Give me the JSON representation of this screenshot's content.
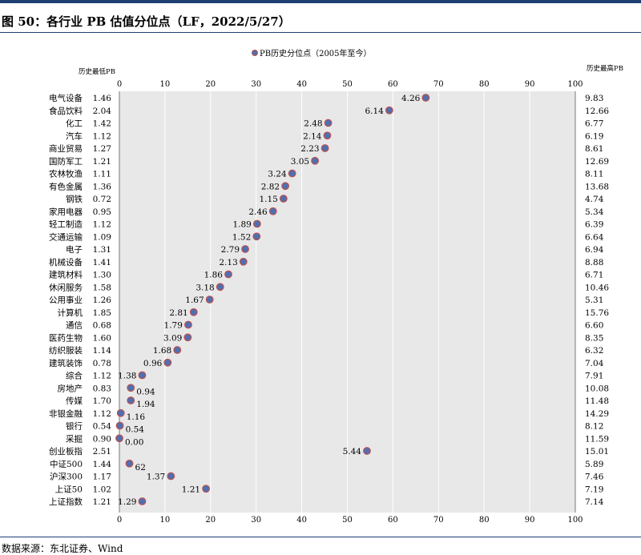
{
  "page": {
    "title": "图 50：各行业 PB 估值分位点（LF，2022/5/27）",
    "source": "数据来源：东北证券、Wind"
  },
  "chart_data": {
    "type": "scatter",
    "title": "",
    "legend": {
      "label": "PB历史分位点（2005年至今）",
      "position": "top-center"
    },
    "left_header": "历史最低PB",
    "right_header": "历史最高PB",
    "xlim": [
      0,
      100
    ],
    "xticks": [
      0,
      10,
      20,
      30,
      40,
      50,
      60,
      70,
      80,
      90,
      100
    ],
    "grid": true,
    "colors": {
      "marker_fill": "#4f6fb0",
      "marker_edge": "#c0504d",
      "plot_bg": "#e8e8e8",
      "grid": "#ffffff"
    },
    "rows": [
      {
        "name": "电气设备",
        "min_pb": "1.46",
        "max_pb": "9.83",
        "percentile": 67.2,
        "current_pb": "4.26"
      },
      {
        "name": "食品饮料",
        "min_pb": "2.04",
        "max_pb": "12.66",
        "percentile": 59.2,
        "current_pb": "6.14"
      },
      {
        "name": "化工",
        "min_pb": "1.42",
        "max_pb": "6.77",
        "percentile": 45.8,
        "current_pb": "2.48"
      },
      {
        "name": "汽车",
        "min_pb": "1.12",
        "max_pb": "6.19",
        "percentile": 45.6,
        "current_pb": "2.14"
      },
      {
        "name": "商业贸易",
        "min_pb": "1.27",
        "max_pb": "8.61",
        "percentile": 45.1,
        "current_pb": "2.23"
      },
      {
        "name": "国防军工",
        "min_pb": "1.21",
        "max_pb": "12.69",
        "percentile": 42.9,
        "current_pb": "3.05"
      },
      {
        "name": "农林牧渔",
        "min_pb": "1.11",
        "max_pb": "8.11",
        "percentile": 37.9,
        "current_pb": "3.24"
      },
      {
        "name": "有色金属",
        "min_pb": "1.36",
        "max_pb": "13.68",
        "percentile": 36.4,
        "current_pb": "2.82"
      },
      {
        "name": "钢铁",
        "min_pb": "0.72",
        "max_pb": "4.74",
        "percentile": 36.0,
        "current_pb": "1.15"
      },
      {
        "name": "家用电器",
        "min_pb": "0.95",
        "max_pb": "5.34",
        "percentile": 33.7,
        "current_pb": "2.46"
      },
      {
        "name": "轻工制造",
        "min_pb": "1.12",
        "max_pb": "6.39",
        "percentile": 30.2,
        "current_pb": "1.89"
      },
      {
        "name": "交通运输",
        "min_pb": "1.09",
        "max_pb": "6.64",
        "percentile": 30.1,
        "current_pb": "1.52"
      },
      {
        "name": "电子",
        "min_pb": "1.31",
        "max_pb": "6.94",
        "percentile": 27.6,
        "current_pb": "2.79"
      },
      {
        "name": "机械设备",
        "min_pb": "1.41",
        "max_pb": "8.88",
        "percentile": 27.2,
        "current_pb": "2.13"
      },
      {
        "name": "建筑材料",
        "min_pb": "1.30",
        "max_pb": "6.71",
        "percentile": 23.9,
        "current_pb": "1.86"
      },
      {
        "name": "休闲服务",
        "min_pb": "1.58",
        "max_pb": "10.46",
        "percentile": 22.1,
        "current_pb": "3.18"
      },
      {
        "name": "公用事业",
        "min_pb": "1.26",
        "max_pb": "5.31",
        "percentile": 19.8,
        "current_pb": "1.67"
      },
      {
        "name": "计算机",
        "min_pb": "1.85",
        "max_pb": "15.76",
        "percentile": 16.3,
        "current_pb": "2.81"
      },
      {
        "name": "通信",
        "min_pb": "0.68",
        "max_pb": "6.60",
        "percentile": 15.1,
        "current_pb": "1.79"
      },
      {
        "name": "医药生物",
        "min_pb": "1.60",
        "max_pb": "8.35",
        "percentile": 15.0,
        "current_pb": "3.09"
      },
      {
        "name": "纺织服装",
        "min_pb": "1.14",
        "max_pb": "6.32",
        "percentile": 12.7,
        "current_pb": "1.68"
      },
      {
        "name": "建筑装饰",
        "min_pb": "0.78",
        "max_pb": "7.04",
        "percentile": 10.6,
        "current_pb": "0.96"
      },
      {
        "name": "综合",
        "min_pb": "1.12",
        "max_pb": "7.91",
        "percentile": 5.0,
        "current_pb": "1.38"
      },
      {
        "name": "房地产",
        "min_pb": "0.83",
        "max_pb": "10.08",
        "percentile": 2.5,
        "current_pb": "0.94"
      },
      {
        "name": "传媒",
        "min_pb": "1.70",
        "max_pb": "11.48",
        "percentile": 2.5,
        "current_pb": "1.94"
      },
      {
        "name": "非银金融",
        "min_pb": "1.12",
        "max_pb": "14.29",
        "percentile": 0.3,
        "current_pb": "1.16"
      },
      {
        "name": "银行",
        "min_pb": "0.54",
        "max_pb": "8.12",
        "percentile": 0.1,
        "current_pb": "0.54"
      },
      {
        "name": "采掘",
        "min_pb": "0.90",
        "max_pb": "11.59",
        "percentile": 0.0,
        "current_pb": "0.00"
      },
      {
        "name": "创业板指",
        "min_pb": "2.51",
        "max_pb": "15.01",
        "percentile": 54.3,
        "current_pb": "5.44"
      },
      {
        "name": "中证500",
        "min_pb": "1.44",
        "max_pb": "5.89",
        "percentile": 2.2,
        "current_pb": "62"
      },
      {
        "name": "沪深300",
        "min_pb": "1.17",
        "max_pb": "7.46",
        "percentile": 11.3,
        "current_pb": "1.37"
      },
      {
        "name": "上证50",
        "min_pb": "1.02",
        "max_pb": "7.19",
        "percentile": 19.0,
        "current_pb": "1.21"
      },
      {
        "name": "上证指数",
        "min_pb": "1.21",
        "max_pb": "7.14",
        "percentile": 5.0,
        "current_pb": "1.29"
      }
    ]
  }
}
